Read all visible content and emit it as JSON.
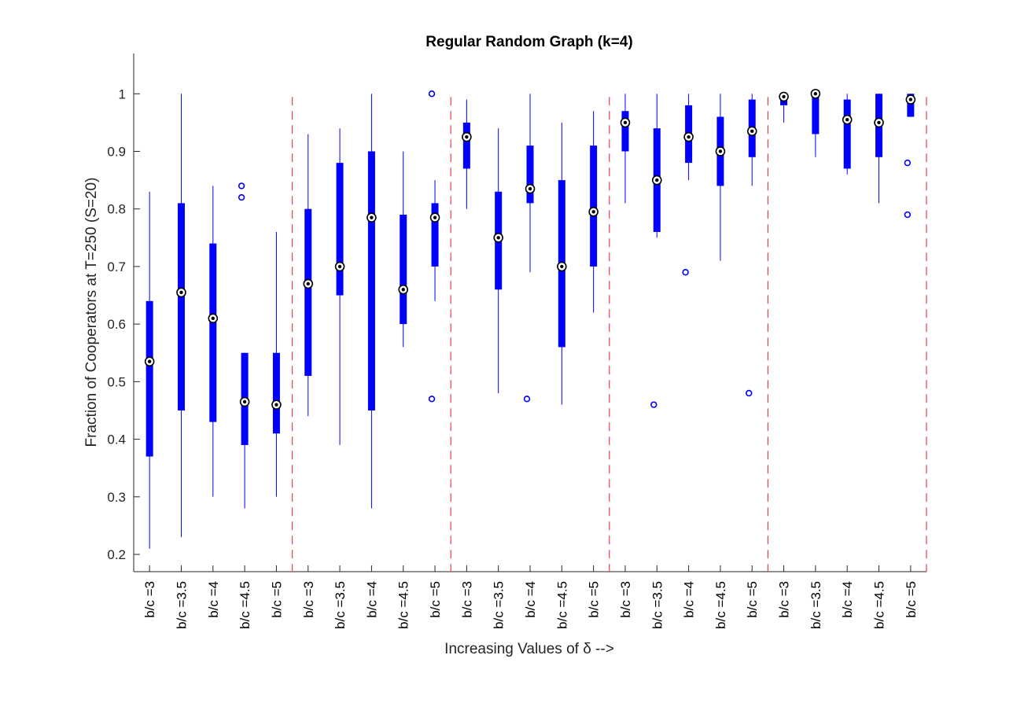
{
  "chart_data": {
    "type": "boxplot",
    "title": "Regular Random Graph (k=4)",
    "ylabel": "Fraction of Cooperators at T=250 (S=20)",
    "xlabel": "Increasing Values of δ -->",
    "ylim": [
      0.17,
      1.07
    ],
    "yticks": [
      0.2,
      0.3,
      0.4,
      0.5,
      0.6,
      0.7,
      0.8,
      0.9,
      1
    ],
    "ytick_labels": [
      "0.2",
      "0.3",
      "0.4",
      "0.5",
      "0.6",
      "0.7",
      "0.8",
      "0.9",
      "1"
    ],
    "group_separators": "dashed red vertical lines between groups of five",
    "box_color": "#0000ff",
    "separator_color": "#e8414a",
    "categories": [
      "b/c =3",
      "b/c =3.5",
      "b/c =4",
      "b/c =4.5",
      "b/c =5",
      "b/c =3",
      "b/c =3.5",
      "b/c =4",
      "b/c =4.5",
      "b/c =5",
      "b/c =3",
      "b/c =3.5",
      "b/c =4",
      "b/c =4.5",
      "b/c =5",
      "b/c =3",
      "b/c =3.5",
      "b/c =4",
      "b/c =4.5",
      "b/c =5",
      "b/c =3",
      "b/c =3.5",
      "b/c =4",
      "b/c =4.5",
      "b/c =5"
    ],
    "boxes": [
      {
        "whisker_low": 0.21,
        "q1": 0.37,
        "median": 0.535,
        "q3": 0.64,
        "whisker_high": 0.83,
        "outliers": []
      },
      {
        "whisker_low": 0.23,
        "q1": 0.45,
        "median": 0.655,
        "q3": 0.81,
        "whisker_high": 1.0,
        "outliers": []
      },
      {
        "whisker_low": 0.3,
        "q1": 0.43,
        "median": 0.61,
        "q3": 0.74,
        "whisker_high": 0.84,
        "outliers": []
      },
      {
        "whisker_low": 0.28,
        "q1": 0.39,
        "median": 0.465,
        "q3": 0.55,
        "whisker_high": 0.55,
        "outliers": [
          0.84,
          0.82
        ]
      },
      {
        "whisker_low": 0.3,
        "q1": 0.41,
        "median": 0.46,
        "q3": 0.55,
        "whisker_high": 0.76,
        "outliers": []
      },
      {
        "whisker_low": 0.44,
        "q1": 0.51,
        "median": 0.67,
        "q3": 0.8,
        "whisker_high": 0.93,
        "outliers": []
      },
      {
        "whisker_low": 0.39,
        "q1": 0.65,
        "median": 0.7,
        "q3": 0.88,
        "whisker_high": 0.94,
        "outliers": []
      },
      {
        "whisker_low": 0.28,
        "q1": 0.45,
        "median": 0.785,
        "q3": 0.9,
        "whisker_high": 1.0,
        "outliers": []
      },
      {
        "whisker_low": 0.56,
        "q1": 0.6,
        "median": 0.66,
        "q3": 0.79,
        "whisker_high": 0.9,
        "outliers": []
      },
      {
        "whisker_low": 0.64,
        "q1": 0.7,
        "median": 0.785,
        "q3": 0.81,
        "whisker_high": 0.85,
        "outliers": [
          1.0,
          0.47
        ]
      },
      {
        "whisker_low": 0.8,
        "q1": 0.87,
        "median": 0.925,
        "q3": 0.95,
        "whisker_high": 0.99,
        "outliers": []
      },
      {
        "whisker_low": 0.48,
        "q1": 0.66,
        "median": 0.75,
        "q3": 0.83,
        "whisker_high": 0.94,
        "outliers": []
      },
      {
        "whisker_low": 0.69,
        "q1": 0.81,
        "median": 0.835,
        "q3": 0.91,
        "whisker_high": 1.0,
        "outliers": [
          0.47
        ]
      },
      {
        "whisker_low": 0.46,
        "q1": 0.56,
        "median": 0.7,
        "q3": 0.85,
        "whisker_high": 0.95,
        "outliers": []
      },
      {
        "whisker_low": 0.62,
        "q1": 0.7,
        "median": 0.795,
        "q3": 0.91,
        "whisker_high": 0.97,
        "outliers": []
      },
      {
        "whisker_low": 0.81,
        "q1": 0.9,
        "median": 0.95,
        "q3": 0.97,
        "whisker_high": 1.0,
        "outliers": []
      },
      {
        "whisker_low": 0.75,
        "q1": 0.76,
        "median": 0.85,
        "q3": 0.94,
        "whisker_high": 1.0,
        "outliers": [
          0.46
        ]
      },
      {
        "whisker_low": 0.85,
        "q1": 0.88,
        "median": 0.925,
        "q3": 0.98,
        "whisker_high": 1.0,
        "outliers": [
          0.69
        ]
      },
      {
        "whisker_low": 0.71,
        "q1": 0.84,
        "median": 0.9,
        "q3": 0.96,
        "whisker_high": 1.0,
        "outliers": []
      },
      {
        "whisker_low": 0.84,
        "q1": 0.89,
        "median": 0.935,
        "q3": 0.99,
        "whisker_high": 1.0,
        "outliers": [
          0.48
        ]
      },
      {
        "whisker_low": 0.95,
        "q1": 0.98,
        "median": 0.995,
        "q3": 1.0,
        "whisker_high": 1.0,
        "outliers": []
      },
      {
        "whisker_low": 0.89,
        "q1": 0.93,
        "median": 1.0,
        "q3": 1.0,
        "whisker_high": 1.0,
        "outliers": []
      },
      {
        "whisker_low": 0.86,
        "q1": 0.87,
        "median": 0.955,
        "q3": 0.99,
        "whisker_high": 1.0,
        "outliers": []
      },
      {
        "whisker_low": 0.81,
        "q1": 0.89,
        "median": 0.95,
        "q3": 1.0,
        "whisker_high": 1.0,
        "outliers": []
      },
      {
        "whisker_low": 0.96,
        "q1": 0.96,
        "median": 0.99,
        "q3": 1.0,
        "whisker_high": 1.0,
        "outliers": [
          0.88,
          0.79
        ]
      }
    ]
  }
}
